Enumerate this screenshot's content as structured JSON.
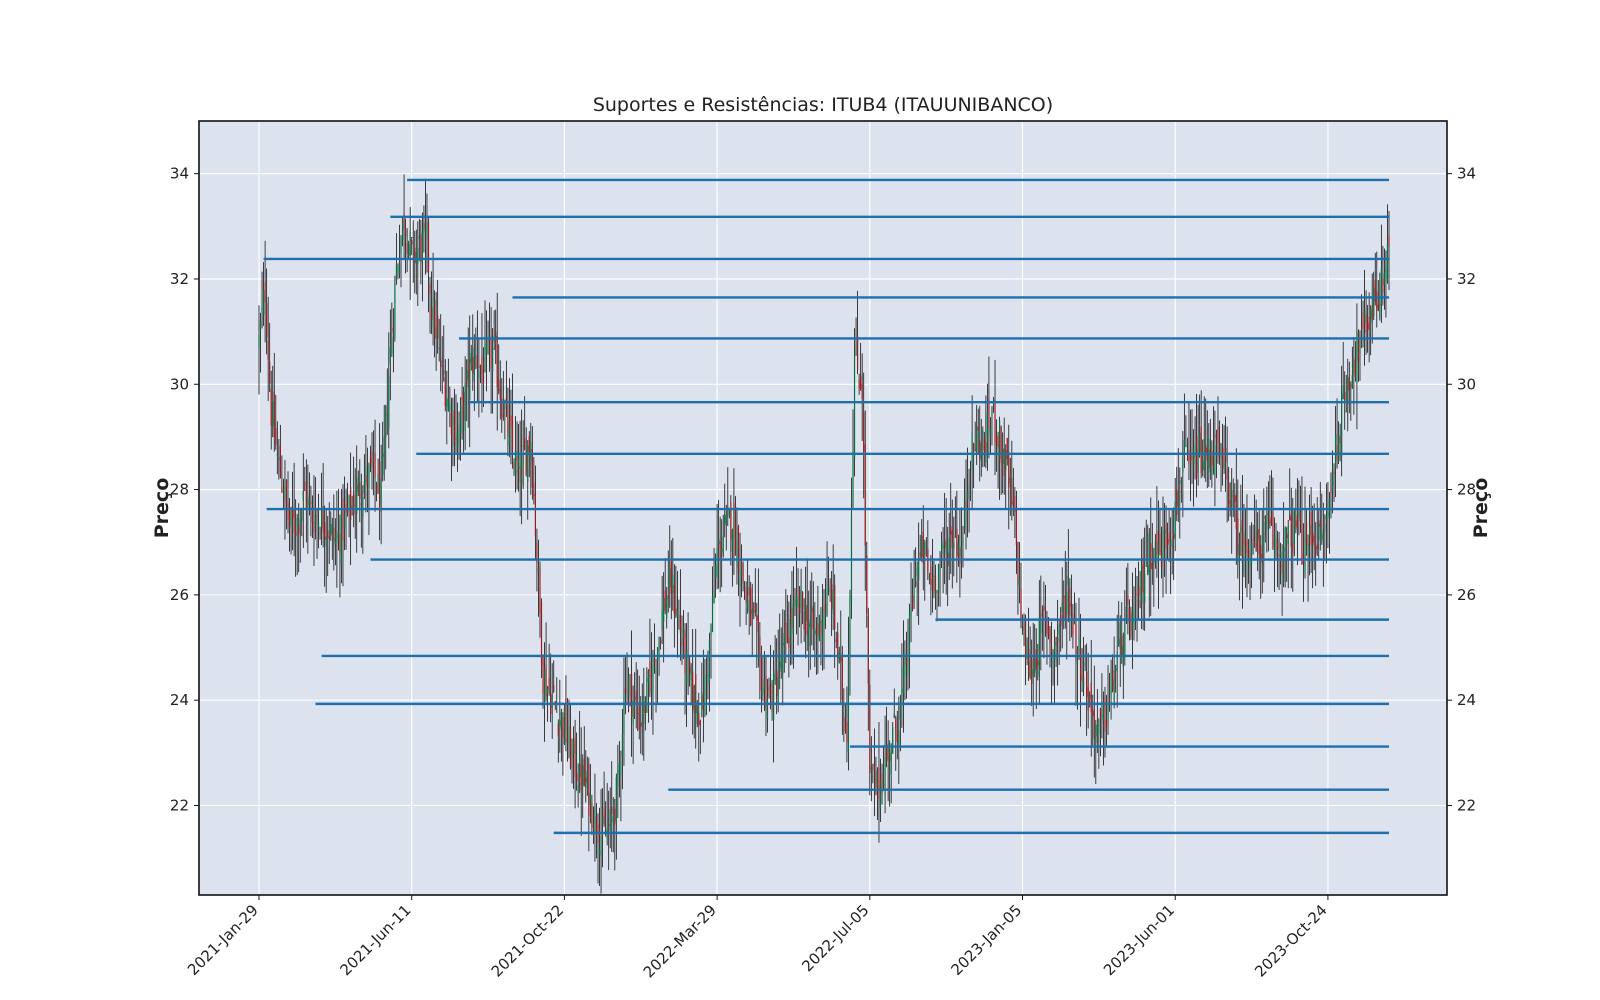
{
  "chart_data": {
    "type": "candlestick",
    "title": "Suportes e Resistências: ITUB4 (ITAUUNIBANCO)",
    "ylabel": "Preço",
    "ylabel_right": "Preço",
    "xlabel": "",
    "ylim": [
      20.3,
      35.0
    ],
    "yticks": [
      22,
      24,
      26,
      28,
      30,
      32,
      34
    ],
    "x_index_range": [
      0,
      740
    ],
    "xticks": [
      {
        "index": 0,
        "label": "2021-Jan-29"
      },
      {
        "index": 100,
        "label": "2021-Jun-11"
      },
      {
        "index": 200,
        "label": "2021-Oct-22"
      },
      {
        "index": 300,
        "label": "2022-Mar-29"
      },
      {
        "index": 400,
        "label": "2022-Jul-05"
      },
      {
        "index": 500,
        "label": "2023-Jan-05"
      },
      {
        "index": 600,
        "label": "2023-Jun-01"
      },
      {
        "index": 700,
        "label": "2023-Oct-24"
      }
    ],
    "grid": true,
    "price_path": [
      [
        0,
        30.8
      ],
      [
        4,
        31.8
      ],
      [
        8,
        29.5
      ],
      [
        12,
        28.6
      ],
      [
        16,
        28.0
      ],
      [
        20,
        27.3
      ],
      [
        25,
        27.4
      ],
      [
        30,
        27.9
      ],
      [
        35,
        27.5
      ],
      [
        40,
        27.5
      ],
      [
        45,
        27.3
      ],
      [
        50,
        27.0
      ],
      [
        55,
        27.3
      ],
      [
        60,
        27.6
      ],
      [
        65,
        28.0
      ],
      [
        70,
        28.2
      ],
      [
        75,
        28.3
      ],
      [
        80,
        27.8
      ],
      [
        85,
        30.2
      ],
      [
        90,
        32.2
      ],
      [
        95,
        33.2
      ],
      [
        100,
        32.4
      ],
      [
        105,
        32.6
      ],
      [
        110,
        32.7
      ],
      [
        113,
        31.5
      ],
      [
        118,
        30.5
      ],
      [
        122,
        30.0
      ],
      [
        126,
        29.4
      ],
      [
        130,
        29.0
      ],
      [
        134,
        29.6
      ],
      [
        138,
        30.3
      ],
      [
        142,
        30.6
      ],
      [
        146,
        30.2
      ],
      [
        150,
        30.5
      ],
      [
        154,
        30.6
      ],
      [
        158,
        29.9
      ],
      [
        162,
        29.3
      ],
      [
        166,
        28.7
      ],
      [
        170,
        28.3
      ],
      [
        174,
        28.6
      ],
      [
        178,
        29.0
      ],
      [
        186,
        24.5
      ],
      [
        190,
        24.2
      ],
      [
        195,
        23.8
      ],
      [
        200,
        23.5
      ],
      [
        205,
        22.9
      ],
      [
        210,
        22.6
      ],
      [
        215,
        22.3
      ],
      [
        220,
        21.8
      ],
      [
        225,
        21.4
      ],
      [
        230,
        21.6
      ],
      [
        235,
        22.3
      ],
      [
        240,
        24.5
      ],
      [
        245,
        24.0
      ],
      [
        250,
        23.6
      ],
      [
        255,
        24.2
      ],
      [
        260,
        24.9
      ],
      [
        265,
        25.8
      ],
      [
        270,
        26.2
      ],
      [
        275,
        25.5
      ],
      [
        280,
        24.6
      ],
      [
        285,
        24.0
      ],
      [
        290,
        23.8
      ],
      [
        295,
        25.0
      ],
      [
        300,
        26.8
      ],
      [
        305,
        27.2
      ],
      [
        310,
        27.5
      ],
      [
        315,
        26.6
      ],
      [
        320,
        25.8
      ],
      [
        325,
        25.3
      ],
      [
        330,
        24.3
      ],
      [
        335,
        24.0
      ],
      [
        340,
        24.5
      ],
      [
        345,
        25.1
      ],
      [
        350,
        25.6
      ],
      [
        355,
        25.8
      ],
      [
        360,
        25.5
      ],
      [
        365,
        25.2
      ],
      [
        370,
        25.8
      ],
      [
        375,
        26.0
      ],
      [
        380,
        24.6
      ],
      [
        385,
        23.5
      ],
      [
        390,
        30.5
      ],
      [
        395,
        30.0
      ],
      [
        400,
        22.5
      ],
      [
        405,
        22.3
      ],
      [
        410,
        22.8
      ],
      [
        415,
        23.3
      ],
      [
        420,
        23.8
      ],
      [
        425,
        25.0
      ],
      [
        430,
        26.5
      ],
      [
        435,
        26.8
      ],
      [
        440,
        26.2
      ],
      [
        445,
        26.5
      ],
      [
        450,
        26.9
      ],
      [
        455,
        27.2
      ],
      [
        460,
        26.8
      ],
      [
        465,
        28.5
      ],
      [
        470,
        29.0
      ],
      [
        475,
        28.8
      ],
      [
        480,
        29.5
      ],
      [
        485,
        28.9
      ],
      [
        490,
        28.3
      ],
      [
        495,
        27.3
      ],
      [
        500,
        25.3
      ],
      [
        505,
        24.5
      ],
      [
        510,
        25.0
      ],
      [
        515,
        25.6
      ],
      [
        520,
        24.9
      ],
      [
        525,
        25.5
      ],
      [
        530,
        26.2
      ],
      [
        535,
        25.1
      ],
      [
        540,
        24.6
      ],
      [
        545,
        23.8
      ],
      [
        550,
        23.3
      ],
      [
        555,
        23.8
      ],
      [
        560,
        24.5
      ],
      [
        565,
        25.2
      ],
      [
        570,
        25.5
      ],
      [
        575,
        25.6
      ],
      [
        580,
        26.6
      ],
      [
        585,
        26.9
      ],
      [
        590,
        26.8
      ],
      [
        595,
        27.2
      ],
      [
        600,
        27.5
      ],
      [
        605,
        28.6
      ],
      [
        610,
        28.3
      ],
      [
        615,
        28.7
      ],
      [
        620,
        28.6
      ],
      [
        625,
        28.8
      ],
      [
        630,
        28.5
      ],
      [
        635,
        28.1
      ],
      [
        640,
        27.2
      ],
      [
        645,
        26.9
      ],
      [
        650,
        27.1
      ],
      [
        655,
        26.8
      ],
      [
        660,
        27.3
      ],
      [
        665,
        27.0
      ],
      [
        670,
        26.8
      ],
      [
        675,
        27.1
      ],
      [
        680,
        27.3
      ],
      [
        685,
        26.8
      ],
      [
        690,
        27.2
      ],
      [
        695,
        27.0
      ],
      [
        700,
        27.5
      ],
      [
        705,
        28.8
      ],
      [
        710,
        29.6
      ],
      [
        715,
        30.3
      ],
      [
        720,
        30.7
      ],
      [
        725,
        31.1
      ],
      [
        730,
        31.6
      ],
      [
        735,
        31.8
      ],
      [
        740,
        32.8
      ]
    ],
    "support_resistance_levels": [
      {
        "start_index": 97,
        "price": 33.88
      },
      {
        "start_index": 86,
        "price": 33.18
      },
      {
        "start_index": 3,
        "price": 32.38
      },
      {
        "start_index": 166,
        "price": 31.65
      },
      {
        "start_index": 131,
        "price": 30.87
      },
      {
        "start_index": 137,
        "price": 29.66
      },
      {
        "start_index": 103,
        "price": 28.68
      },
      {
        "start_index": 5,
        "price": 27.63
      },
      {
        "start_index": 73,
        "price": 26.67
      },
      {
        "start_index": 443,
        "price": 25.53
      },
      {
        "start_index": 41,
        "price": 24.84
      },
      {
        "start_index": 37,
        "price": 23.93
      },
      {
        "start_index": 387,
        "price": 23.12
      },
      {
        "start_index": 268,
        "price": 22.3
      },
      {
        "start_index": 193,
        "price": 21.48
      }
    ],
    "colors": {
      "background": "#dde3ee",
      "grid": "#ffffff",
      "level_line": "#1f6fad",
      "candle_up": "#0b6e3f",
      "candle_down": "#9b1c1c",
      "wick": "#111111",
      "frame": "#111111"
    }
  }
}
